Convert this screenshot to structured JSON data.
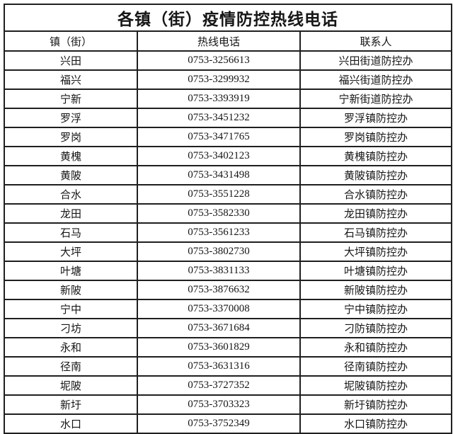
{
  "colors": {
    "border": "#1f1f1f",
    "text": "#161616",
    "background": "#ffffff"
  },
  "table": {
    "title": "各镇（街）疫情防控热线电话",
    "columns": [
      "镇（街）",
      "热线电话",
      "联系人"
    ],
    "rows": [
      {
        "town": "兴田",
        "phone": "0753-3256613",
        "contact": "兴田街道防控办"
      },
      {
        "town": "福兴",
        "phone": "0753-3299932",
        "contact": "福兴街道防控办"
      },
      {
        "town": "宁新",
        "phone": "0753-3393919",
        "contact": "宁新街道防控办"
      },
      {
        "town": "罗浮",
        "phone": "0753-3451232",
        "contact": "罗浮镇防控办"
      },
      {
        "town": "罗岗",
        "phone": "0753-3471765",
        "contact": "罗岗镇防控办"
      },
      {
        "town": "黄槐",
        "phone": "0753-3402123",
        "contact": "黄槐镇防控办"
      },
      {
        "town": "黄陂",
        "phone": "0753-3431498",
        "contact": "黄陂镇防控办"
      },
      {
        "town": "合水",
        "phone": "0753-3551228",
        "contact": "合水镇防控办"
      },
      {
        "town": "龙田",
        "phone": "0753-3582330",
        "contact": "龙田镇防控办"
      },
      {
        "town": "石马",
        "phone": "0753-3561233",
        "contact": "石马镇防控办"
      },
      {
        "town": "大坪",
        "phone": "0753-3802730",
        "contact": "大坪镇防控办"
      },
      {
        "town": "叶塘",
        "phone": "0753-3831133",
        "contact": "叶塘镇防控办"
      },
      {
        "town": "新陂",
        "phone": "0753-3876632",
        "contact": "新陂镇防控办"
      },
      {
        "town": "宁中",
        "phone": "0753-3370008",
        "contact": "宁中镇防控办"
      },
      {
        "town": "刁坊",
        "phone": "0753-3671684",
        "contact": "刁防镇防控办"
      },
      {
        "town": "永和",
        "phone": "0753-3601829",
        "contact": "永和镇防控办"
      },
      {
        "town": "径南",
        "phone": "0753-3631316",
        "contact": "径南镇防控办"
      },
      {
        "town": "坭陂",
        "phone": "0753-3727352",
        "contact": "坭陂镇防控办"
      },
      {
        "town": "新圩",
        "phone": "0753-3703323",
        "contact": "新圩镇防控办"
      },
      {
        "town": "水口",
        "phone": "0753-3752349",
        "contact": "水口镇防控办"
      }
    ]
  }
}
